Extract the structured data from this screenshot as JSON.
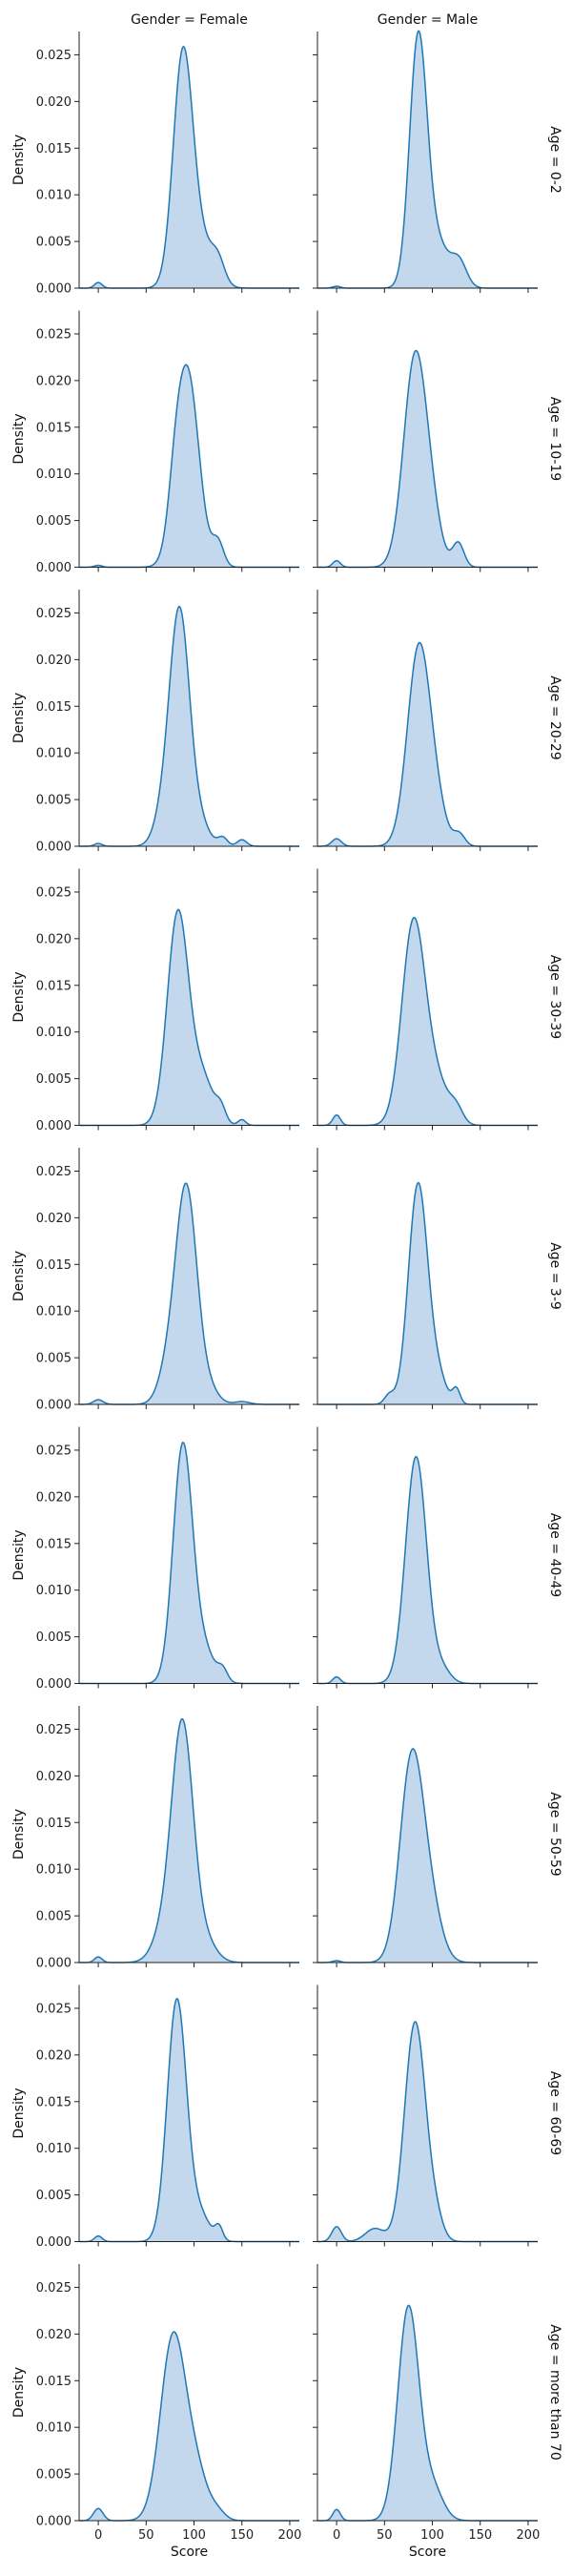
{
  "chart_data": {
    "type": "area",
    "kind": "kde facet grid",
    "x_label": "Score",
    "y_label": "Density",
    "x_range": [
      -20,
      210
    ],
    "y_range": [
      0,
      0.0275
    ],
    "x_ticks": [
      0,
      50,
      100,
      150,
      200
    ],
    "y_ticks": [
      0.0,
      0.005,
      0.01,
      0.015,
      0.02,
      0.025
    ],
    "y_tick_labels": [
      "0.000",
      "0.005",
      "0.010",
      "0.015",
      "0.020",
      "0.025"
    ],
    "fill_color": "#aac8e4",
    "line_color": "#1f77b4",
    "col_facet": "Gender",
    "col_titles": [
      "Gender = Female",
      "Gender = Male"
    ],
    "row_facet": "Age",
    "row_titles": [
      "Age = 0-2",
      "Age = 10-19",
      "Age = 20-29",
      "Age = 30-39",
      "Age = 3-9",
      "Age = 40-49",
      "Age = 50-59",
      "Age = 60-69",
      "Age = more than 70"
    ],
    "facets": [
      [
        {
          "components": [
            [
              0.0229,
              88,
              10
            ],
            [
              0.0055,
              104,
              14
            ],
            [
              0.0022,
              125,
              7
            ],
            [
              0.0006,
              0,
              4
            ]
          ]
        },
        {
          "components": [
            [
              0.0255,
              85,
              9
            ],
            [
              0.0052,
              103,
              13
            ],
            [
              0.0026,
              128,
              8
            ],
            [
              0.0002,
              0,
              4
            ]
          ]
        }
      ],
      [
        {
          "components": [
            [
              0.021,
              93,
              12
            ],
            [
              0.0033,
              80,
              7
            ],
            [
              0.0026,
              125,
              6
            ],
            [
              0.0002,
              0,
              4
            ]
          ]
        },
        {
          "components": [
            [
              0.0224,
              82,
              12
            ],
            [
              0.0038,
              100,
              10
            ],
            [
              0.0026,
              127,
              6
            ],
            [
              0.0007,
              0,
              4
            ]
          ]
        }
      ],
      [
        {
          "components": [
            [
              0.0236,
              85,
              10
            ],
            [
              0.004,
              70,
              10
            ],
            [
              0.003,
              103,
              11
            ],
            [
              0.0009,
              130,
              5
            ],
            [
              0.0007,
              150,
              5
            ],
            [
              0.0003,
              0,
              4
            ]
          ]
        },
        {
          "components": [
            [
              0.0213,
              86,
              12
            ],
            [
              0.003,
              105,
              10
            ],
            [
              0.0013,
              128,
              6
            ],
            [
              0.0008,
              0,
              5
            ]
          ]
        }
      ],
      [
        {
          "components": [
            [
              0.0225,
              83,
              11
            ],
            [
              0.0052,
              108,
              12
            ],
            [
              0.0014,
              128,
              5
            ],
            [
              0.0006,
              150,
              4
            ]
          ]
        },
        {
          "components": [
            [
              0.0212,
              80,
              12
            ],
            [
              0.0048,
              103,
              13
            ],
            [
              0.0015,
              125,
              7
            ],
            [
              0.0011,
              0,
              4
            ]
          ]
        }
      ],
      [
        {
          "components": [
            [
              0.023,
              92,
              11
            ],
            [
              0.0035,
              73,
              10
            ],
            [
              0.0016,
              115,
              10
            ],
            [
              0.0003,
              150,
              8
            ],
            [
              0.0005,
              0,
              5
            ]
          ]
        },
        {
          "components": [
            [
              0.0235,
              85,
              10
            ],
            [
              0.003,
              105,
              9
            ],
            [
              0.0016,
              125,
              4
            ],
            [
              0.001,
              55,
              5
            ]
          ]
        }
      ],
      [
        {
          "components": [
            [
              0.0248,
              88,
              10
            ],
            [
              0.004,
              108,
              12
            ],
            [
              0.0012,
              130,
              5
            ]
          ]
        },
        {
          "components": [
            [
              0.0243,
              83,
              11
            ],
            [
              0.0015,
              110,
              9
            ],
            [
              0.0007,
              0,
              4
            ]
          ]
        }
      ],
      [
        {
          "components": [
            [
              0.0245,
              88,
              11
            ],
            [
              0.0035,
              70,
              12
            ],
            [
              0.0025,
              110,
              12
            ],
            [
              0.0006,
              0,
              4
            ]
          ]
        },
        {
          "components": [
            [
              0.021,
              78,
              12
            ],
            [
              0.006,
              97,
              12
            ],
            [
              0.0002,
              0,
              4
            ]
          ]
        }
      ],
      [
        {
          "components": [
            [
              0.0257,
              82,
              10
            ],
            [
              0.003,
              105,
              11
            ],
            [
              0.0014,
              126,
              4
            ],
            [
              0.0006,
              0,
              4
            ]
          ]
        },
        {
          "components": [
            [
              0.0235,
              82,
              11
            ],
            [
              0.0022,
              103,
              8
            ],
            [
              0.0016,
              0,
              5
            ],
            [
              0.0014,
              40,
              10
            ]
          ]
        }
      ],
      [
        {
          "components": [
            [
              0.0195,
              78,
              13
            ],
            [
              0.005,
              102,
              12
            ],
            [
              0.0013,
              0,
              5
            ],
            [
              0.0008,
              125,
              8
            ]
          ]
        },
        {
          "components": [
            [
              0.0228,
              75,
              11
            ],
            [
              0.0035,
              100,
              11
            ],
            [
              0.0012,
              0,
              4
            ]
          ]
        }
      ]
    ]
  }
}
